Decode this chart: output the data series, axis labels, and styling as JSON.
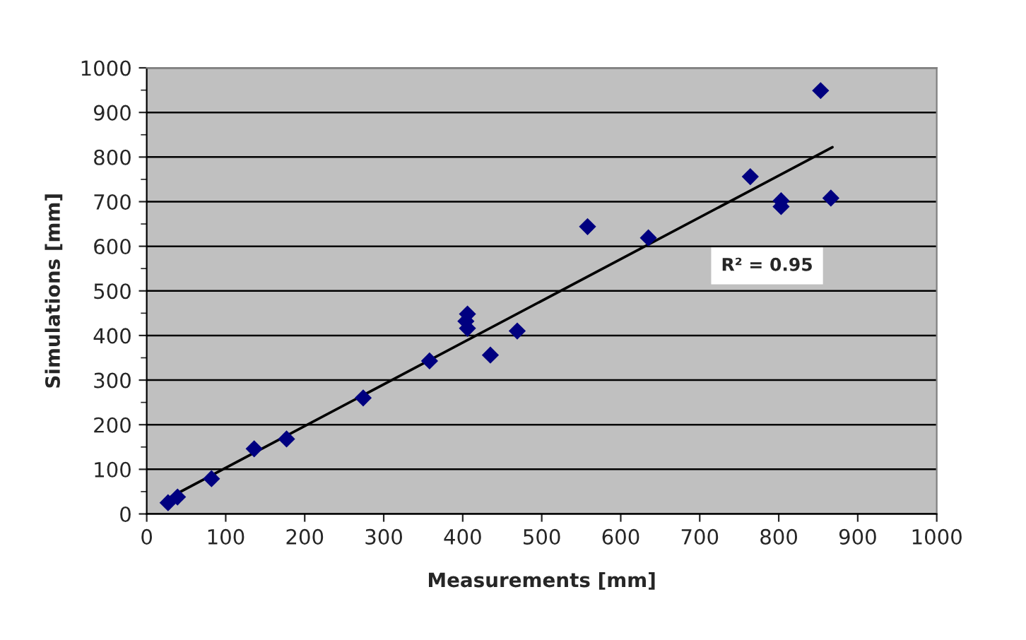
{
  "chart_data": {
    "type": "scatter",
    "xlabel": "Measurements [mm]",
    "ylabel": "Simulations [mm]",
    "xlim": [
      0,
      1000
    ],
    "xticks": [
      0,
      100,
      200,
      300,
      400,
      500,
      600,
      700,
      800,
      900,
      1000
    ],
    "ylim": [
      0,
      1000
    ],
    "yticks": [
      0,
      100,
      200,
      300,
      400,
      500,
      600,
      700,
      800,
      900,
      1000
    ],
    "grid": "y",
    "annotations": [
      "R² = 0.95"
    ],
    "series": [
      {
        "marker": "diamond",
        "color": "#000080",
        "x": [
          27,
          39,
          82,
          136,
          177,
          274,
          358,
          406,
          404,
          406,
          435,
          469,
          558,
          635,
          764,
          803,
          803,
          866,
          853
        ],
        "values": [
          25,
          38,
          79,
          146,
          168,
          260,
          343,
          448,
          432,
          416,
          356,
          410,
          644,
          619,
          756,
          702,
          689,
          708,
          949
        ]
      },
      {
        "type": "line",
        "marker": "none",
        "color": "#000000",
        "x": [
          27,
          868
        ],
        "values": [
          35,
          822
        ]
      }
    ]
  }
}
